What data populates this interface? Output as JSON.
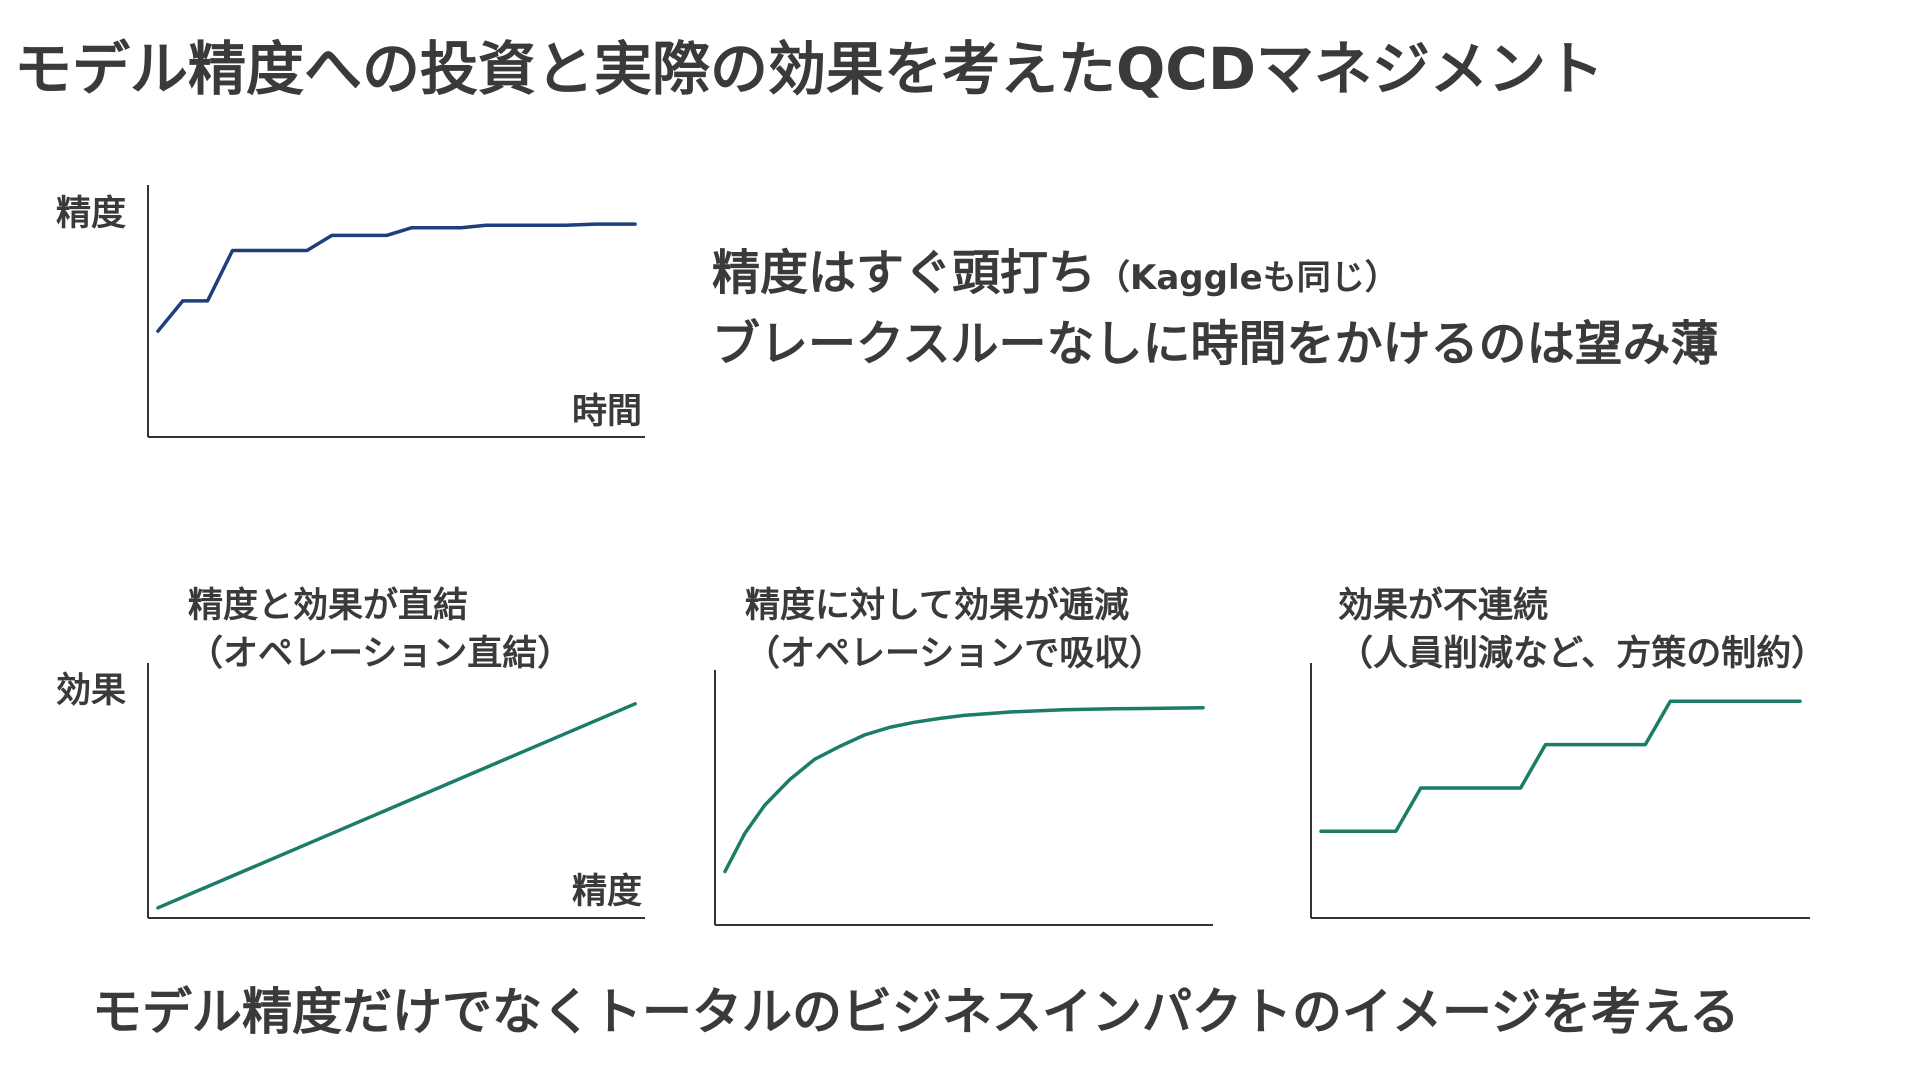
{
  "title": "モデル精度への投資と実際の効果を考えたQCDマネジメント",
  "message": {
    "line1": "精度はすぐ頭打ち",
    "line1_note": "（Kaggleも同じ）",
    "line2": "ブレークスルーなしに時間をかけるのは望み薄"
  },
  "footer": "モデル精度だけでなくトータルのビジネスインパクトのイメージを考える",
  "colors": {
    "accuracy_line": "#1f3f7a",
    "effect_line": "#1b7d68",
    "axis": "#333333",
    "text": "#3a3a3a"
  },
  "chart_data": [
    {
      "type": "line",
      "id": "accuracy-over-time",
      "ylabel": "精度",
      "xlabel": "時間",
      "color": "#1f3f7a",
      "xlim": [
        0,
        100
      ],
      "ylim": [
        0,
        100
      ],
      "x": [
        2,
        7,
        12,
        17,
        27,
        32,
        37,
        48,
        53,
        63,
        68,
        84,
        90,
        98
      ],
      "y": [
        42,
        54,
        54,
        74,
        74,
        74,
        80,
        80,
        83,
        83,
        84,
        84,
        84.5,
        84.5
      ]
    },
    {
      "type": "line",
      "id": "effect-linear",
      "title_lines": [
        "精度と効果が直結",
        "（オペレーション直結）"
      ],
      "ylabel": "効果",
      "xlabel": "精度",
      "color": "#1b7d68",
      "xlim": [
        0,
        100
      ],
      "ylim": [
        0,
        100
      ],
      "x": [
        2,
        98
      ],
      "y": [
        4,
        84
      ]
    },
    {
      "type": "line",
      "id": "effect-diminishing",
      "title_lines": [
        "精度に対して効果が逓減",
        "（オペレーションで吸収）"
      ],
      "color": "#1b7d68",
      "xlim": [
        0,
        100
      ],
      "ylim": [
        0,
        100
      ],
      "x": [
        2,
        6,
        10,
        15,
        20,
        25,
        30,
        35,
        40,
        45,
        50,
        60,
        70,
        80,
        90,
        98
      ],
      "y": [
        21,
        36,
        47,
        57,
        65,
        70,
        74.5,
        77.5,
        79.5,
        81,
        82.2,
        83.6,
        84.4,
        84.8,
        85,
        85.2
      ]
    },
    {
      "type": "line",
      "id": "effect-step",
      "title_lines": [
        "効果が不連続",
        "（人員削減など、方策の制約）"
      ],
      "color": "#1b7d68",
      "xlim": [
        0,
        100
      ],
      "ylim": [
        0,
        100
      ],
      "x": [
        2,
        17,
        22,
        42,
        47,
        67,
        72,
        98
      ],
      "y": [
        34,
        34,
        51,
        51,
        68,
        68,
        85,
        85
      ]
    }
  ]
}
